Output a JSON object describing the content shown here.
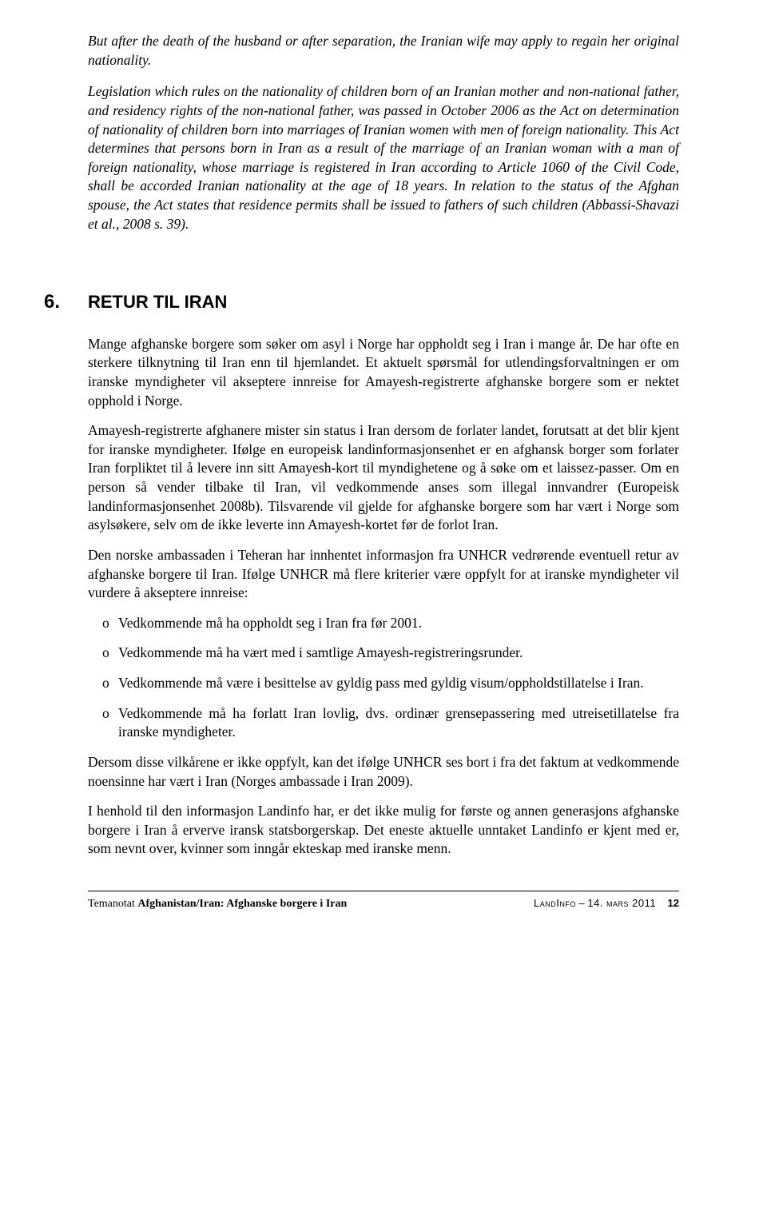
{
  "quote": {
    "para1": "But after the death of the husband or after separation, the Iranian wife may apply to regain her original nationality.",
    "para2": "Legislation which rules on the nationality of children born of an Iranian mother and non-national father, and residency rights of the non-national father, was passed in October 2006 as the Act on determination of nationality of children born into marriages of Iranian women with men of foreign nationality. This Act determines that persons born in Iran as a result of the marriage of an Iranian woman with a man of foreign nationality, whose marriage is registered in Iran according to Article 1060 of the Civil Code, shall be accorded Iranian nationality at the age of 18 years. In relation to the status of the Afghan spouse, the Act states that residence permits shall be issued to fathers of such children (Abbassi-Shavazi et al., 2008 s. 39)."
  },
  "section": {
    "number": "6.",
    "title": "RETUR TIL IRAN"
  },
  "body": {
    "p1": "Mange afghanske borgere som søker om asyl i Norge har oppholdt seg i Iran i mange år. De har ofte en sterkere tilknytning til Iran enn til hjemlandet. Et aktuelt spørsmål for utlendingsforvaltningen er om iranske myndigheter vil akseptere innreise for Amayesh-registrerte afghanske borgere som er nektet opphold i Norge.",
    "p2": "Amayesh-registrerte afghanere mister sin status i Iran dersom de forlater landet, forutsatt at det blir kjent for iranske myndigheter. Ifølge en europeisk landinformasjonsenhet er en afghansk borger som forlater Iran forpliktet til å levere inn sitt Amayesh-kort til myndighetene og å søke om et laissez-passer. Om en person så vender tilbake til Iran, vil vedkommende anses som illegal innvandrer (Europeisk landinformasjonsenhet 2008b). Tilsvarende vil gjelde for afghanske borgere som har vært i Norge som asylsøkere, selv om de ikke leverte inn Amayesh-kortet før de forlot Iran.",
    "p3": "Den norske ambassaden i Teheran har innhentet informasjon fra UNHCR vedrørende eventuell retur av afghanske borgere til Iran. Ifølge UNHCR må flere kriterier være oppfylt for at iranske myndigheter vil vurdere å akseptere innreise:",
    "p4": "Dersom disse vilkårene er ikke oppfylt, kan det ifølge UNHCR ses bort i fra det faktum at vedkommende noensinne har vært i Iran (Norges ambassade i Iran 2009).",
    "p5": "I henhold til den informasjon Landinfo har, er det ikke mulig for første og annen generasjons afghanske borgere i Iran å erverve iransk statsborgerskap. Det eneste aktuelle unntaket Landinfo er kjent med er, som nevnt over, kvinner som inngår ekteskap med iranske menn."
  },
  "bullets": {
    "marker": "o",
    "b1": "Vedkommende må ha oppholdt seg i Iran fra før 2001.",
    "b2": "Vedkommende må ha vært med i samtlige Amayesh-registreringsrunder.",
    "b3": "Vedkommende må være i besittelse av gyldig pass med gyldig visum/oppholdstillatelse i Iran.",
    "b4": "Vedkommende må ha forlatt Iran lovlig, dvs. ordinær grensepassering med utreisetillatelse fra iranske myndigheter."
  },
  "footer": {
    "left_prefix": "Temanotat ",
    "left_bold": "Afghanistan/Iran: Afghanske borgere i Iran",
    "right_brand": "LandInfo",
    "right_sep": " – ",
    "right_date": "14. mars 2011",
    "right_page": "12"
  },
  "colors": {
    "text": "#000000",
    "background": "#ffffff",
    "rule": "#000000"
  },
  "typography": {
    "body_font": "Times New Roman",
    "heading_font": "Arial",
    "body_size_pt": 13,
    "heading_size_pt": 17,
    "italic_quote": true
  }
}
